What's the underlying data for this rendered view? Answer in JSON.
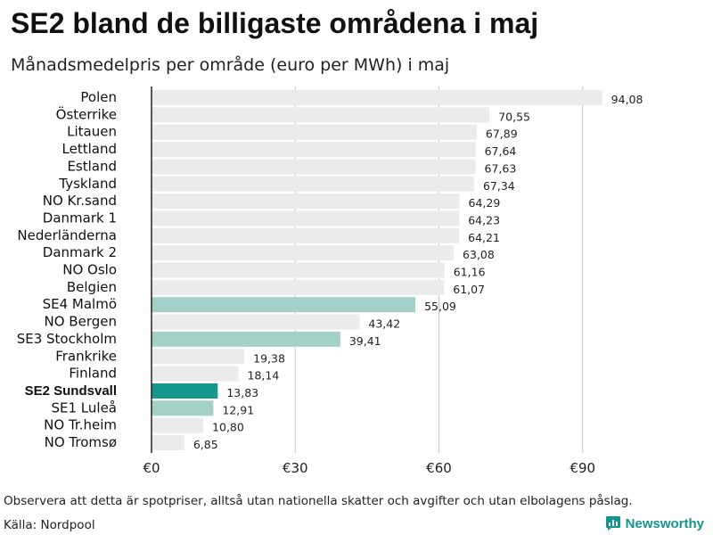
{
  "header": {
    "title": "SE2 bland de billigaste områdena i maj",
    "subtitle": "Månadsmedelpris per område (euro per MWh) i maj"
  },
  "footer": {
    "note": "Observera att detta är spotpriser, alltså utan nationella skatter och avgifter och utan elbolagens påslag.",
    "source": "Källa: Nordpool",
    "brand": "Newsworthy"
  },
  "colors": {
    "default": "#ebebeb",
    "se_light": "#a3d1c8",
    "highlight": "#15968a",
    "axis": "#222222"
  },
  "chart_data": {
    "type": "bar",
    "orientation": "horizontal",
    "title": "SE2 bland de billigaste områdena i maj",
    "subtitle": "Månadsmedelpris per område (euro per MWh) i maj",
    "xlim": [
      0,
      100
    ],
    "xticks": [
      0,
      30,
      60,
      90
    ],
    "xtick_labels": [
      "€0",
      "€30",
      "€60",
      "€90"
    ],
    "grid": true,
    "categories": [
      "Polen",
      "Österrike",
      "Litauen",
      "Lettland",
      "Estland",
      "Tyskland",
      "NO Kr.sand",
      "Danmark  1",
      "Nederländerna",
      "Danmark  2",
      "NO Oslo",
      "Belgien",
      "SE4  Malmö",
      "NO Bergen",
      "SE3  Stockholm",
      "Frankrike",
      "Finland",
      "SE2 Sundsvall",
      "SE1  Luleå",
      "NO Tr.heim",
      "NO Tromsø"
    ],
    "values": [
      94.08,
      70.55,
      67.89,
      67.64,
      67.63,
      67.34,
      64.29,
      64.23,
      64.21,
      63.08,
      61.16,
      61.07,
      55.09,
      43.42,
      39.41,
      19.38,
      18.14,
      13.83,
      12.91,
      10.8,
      6.85
    ],
    "value_labels": [
      "94,08",
      "70,55",
      "67,89",
      "67,64",
      "67,63",
      "67,34",
      "64,29",
      "64,23",
      "64,21",
      "63,08",
      "61,16",
      "61,07",
      "55,09",
      "43,42",
      "39,41",
      "19,38",
      "18,14",
      "13,83",
      "12,91",
      "10,80",
      "6,85"
    ],
    "bar_styles": [
      "default",
      "default",
      "default",
      "default",
      "default",
      "default",
      "default",
      "default",
      "default",
      "default",
      "default",
      "default",
      "se_light",
      "default",
      "se_light",
      "default",
      "default",
      "highlight",
      "se_light",
      "default",
      "default"
    ],
    "bold_categories": [
      "SE2 Sundsvall"
    ]
  }
}
